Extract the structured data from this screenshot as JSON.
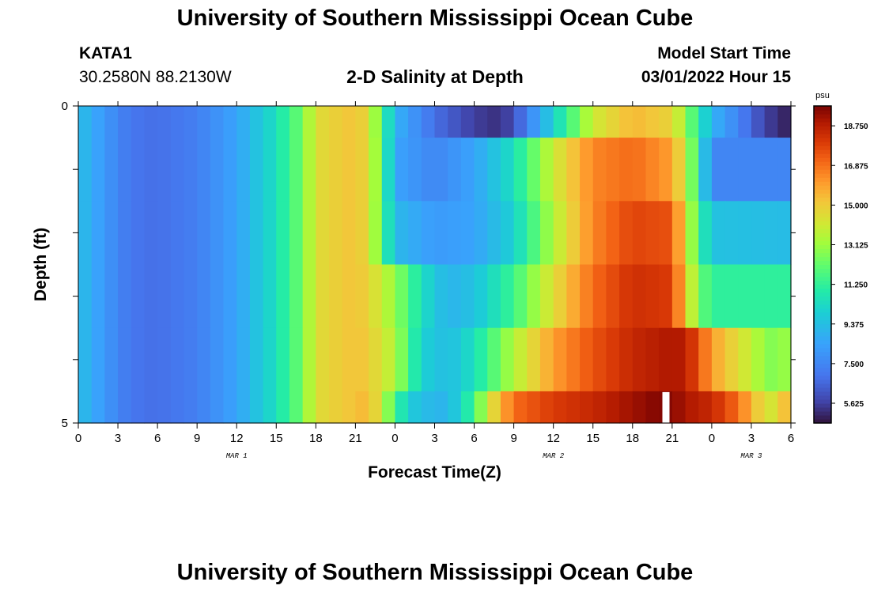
{
  "page": {
    "title": "University of Southern Mississippi Ocean Cube",
    "station": "KATA1",
    "coords": "30.2580N  88.2130W",
    "plot_title": "2-D Salinity at Depth",
    "model_start_label": "Model Start Time",
    "model_start_value": "03/01/2022 Hour 15",
    "bottom_title": "University of Southern Mississippi Ocean Cube"
  },
  "chart_data": {
    "type": "heatmap",
    "title": "2-D Salinity at Depth",
    "xlabel": "Forecast Time(Z)",
    "ylabel": "Depth (ft)",
    "x_tick_labels": [
      "0",
      "3",
      "6",
      "9",
      "12",
      "15",
      "18",
      "21",
      "0",
      "3",
      "6",
      "9",
      "12",
      "15",
      "18",
      "21",
      "0",
      "3",
      "6"
    ],
    "x_date_labels": [
      {
        "text": "MAR 1",
        "at_hour": 12
      },
      {
        "text": "MAR 2",
        "at_hour": 36
      },
      {
        "text": "MAR 3",
        "at_hour": 51
      }
    ],
    "x_range_hours": [
      0,
      54
    ],
    "y_range": [
      0,
      5
    ],
    "y_tick_labels": [
      "0",
      "5"
    ],
    "y_ticks": [
      0,
      1,
      2,
      3,
      4,
      5
    ],
    "colorbar": {
      "unit": "psu",
      "range": [
        4.69,
        19.69
      ],
      "tick_labels": [
        "18.750",
        "16.875",
        "15.000",
        "13.125",
        "11.250",
        "9.375",
        "7.500",
        "5.625"
      ],
      "tick_values": [
        18.75,
        16.875,
        15.0,
        13.125,
        11.25,
        9.375,
        7.5,
        5.625
      ]
    },
    "depth_layers": [
      {
        "depth_range": [
          0,
          0.5
        ],
        "hours": [
          0,
          3,
          4,
          6,
          9,
          12,
          15,
          17,
          18,
          21,
          22,
          24,
          27,
          30,
          32,
          33,
          36,
          39,
          42,
          45,
          46,
          47,
          48,
          50,
          51,
          52,
          53,
          54
        ],
        "salinity": [
          9.4,
          7.5,
          7.0,
          6.8,
          7.3,
          8.5,
          10.5,
          12.5,
          14.5,
          15.3,
          14.5,
          9.0,
          6.8,
          5.6,
          5.3,
          6.0,
          10.0,
          14.0,
          15.5,
          14.8,
          13.0,
          11.0,
          9.0,
          7.5,
          6.5,
          5.8,
          5.2,
          5.0
        ]
      },
      {
        "depth_range": [
          0.5,
          1.5
        ],
        "hours": [
          0,
          3,
          4,
          6,
          9,
          12,
          15,
          17,
          18,
          21,
          22,
          23,
          24,
          27,
          30,
          33,
          36,
          39,
          42,
          45,
          46,
          47,
          48,
          54
        ],
        "salinity": [
          9.4,
          7.5,
          7.0,
          6.8,
          7.3,
          8.5,
          10.5,
          12.5,
          14.5,
          15.3,
          14.5,
          12.0,
          8.5,
          7.5,
          8.5,
          10.5,
          14.0,
          16.5,
          17.0,
          16.0,
          14.0,
          11.0,
          7.5,
          7.5
        ]
      },
      {
        "depth_range": [
          1.5,
          2.5
        ],
        "hours": [
          0,
          3,
          4,
          6,
          9,
          12,
          15,
          17,
          18,
          21,
          22,
          24,
          27,
          30,
          33,
          36,
          39,
          42,
          45,
          46,
          47,
          48,
          54
        ],
        "salinity": [
          9.4,
          7.5,
          7.0,
          6.8,
          7.3,
          8.5,
          10.5,
          12.5,
          14.5,
          15.3,
          14.5,
          9.2,
          8.2,
          8.5,
          10.0,
          13.5,
          16.5,
          17.8,
          17.5,
          14.5,
          11.5,
          9.5,
          9.3
        ]
      },
      {
        "depth_range": [
          2.5,
          3.5
        ],
        "hours": [
          0,
          3,
          4,
          6,
          9,
          12,
          15,
          17,
          18,
          21,
          22,
          24,
          26,
          28,
          30,
          33,
          36,
          39,
          42,
          45,
          46,
          47,
          48,
          54
        ],
        "salinity": [
          9.4,
          7.5,
          7.0,
          6.8,
          7.3,
          8.5,
          10.5,
          12.5,
          14.5,
          15.3,
          14.8,
          13.0,
          10.5,
          9.0,
          9.5,
          11.5,
          14.5,
          17.0,
          18.3,
          18.0,
          15.0,
          12.5,
          11.2,
          11.2
        ]
      },
      {
        "depth_range": [
          3.5,
          4.5
        ],
        "hours": [
          0,
          3,
          4,
          6,
          9,
          12,
          15,
          17,
          18,
          21,
          22,
          24,
          26,
          28,
          30,
          33,
          36,
          39,
          42,
          45,
          46,
          47,
          48,
          50,
          52,
          53,
          54
        ],
        "salinity": [
          9.4,
          7.5,
          7.0,
          6.8,
          7.3,
          8.5,
          10.5,
          12.5,
          14.5,
          15.3,
          15.0,
          13.5,
          10.0,
          9.3,
          10.5,
          13.5,
          16.0,
          17.5,
          18.5,
          19.0,
          18.8,
          17.5,
          16.0,
          14.5,
          13.0,
          12.5,
          13.5
        ]
      },
      {
        "depth_range": [
          4.5,
          5
        ],
        "hours": [
          0,
          3,
          4,
          6,
          9,
          12,
          15,
          17,
          18,
          21,
          22,
          23,
          24,
          25,
          26,
          28,
          30,
          31,
          33,
          36,
          39,
          42,
          44,
          45,
          46,
          48,
          50,
          51,
          52,
          53,
          54
        ],
        "salinity": [
          9.4,
          7.5,
          7.0,
          6.8,
          7.3,
          8.5,
          10.5,
          12.5,
          14.5,
          15.3,
          15.5,
          14.0,
          11.5,
          10.0,
          9.3,
          9.0,
          11.5,
          14.0,
          17.0,
          18.0,
          18.5,
          19.2,
          19.6,
          19.5,
          19.0,
          18.5,
          17.0,
          15.5,
          14.5,
          14.0,
          16.5
        ]
      }
    ],
    "missing_cells": [
      {
        "hour": 44.5,
        "depth_range": [
          4.5,
          5
        ]
      }
    ]
  }
}
